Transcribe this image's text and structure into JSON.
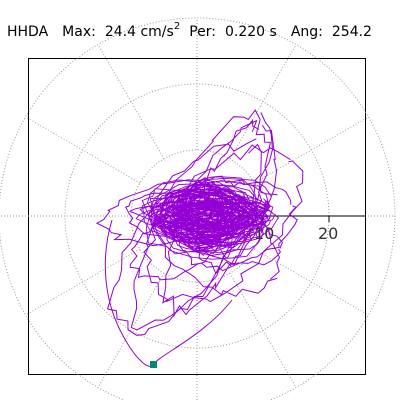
{
  "header": {
    "component": "HHDA",
    "max_label": "Max:",
    "max_value": "24.4 cm/s",
    "max_exp": "2",
    "per_label": "Per:",
    "per_value": "0.220 s",
    "ang_label": "Ang:",
    "ang_value": "254.2"
  },
  "plot": {
    "type": "polar hodogram",
    "ring_values": [
      10,
      20,
      30
    ],
    "tick_labels": [
      "10",
      "20"
    ],
    "spokes_deg": [
      0,
      30,
      60,
      90,
      120,
      150,
      180,
      210,
      240,
      270,
      300,
      330
    ],
    "grid": "dotted",
    "trace_color": "#9400d3",
    "marker_color": "#00897b"
  }
}
